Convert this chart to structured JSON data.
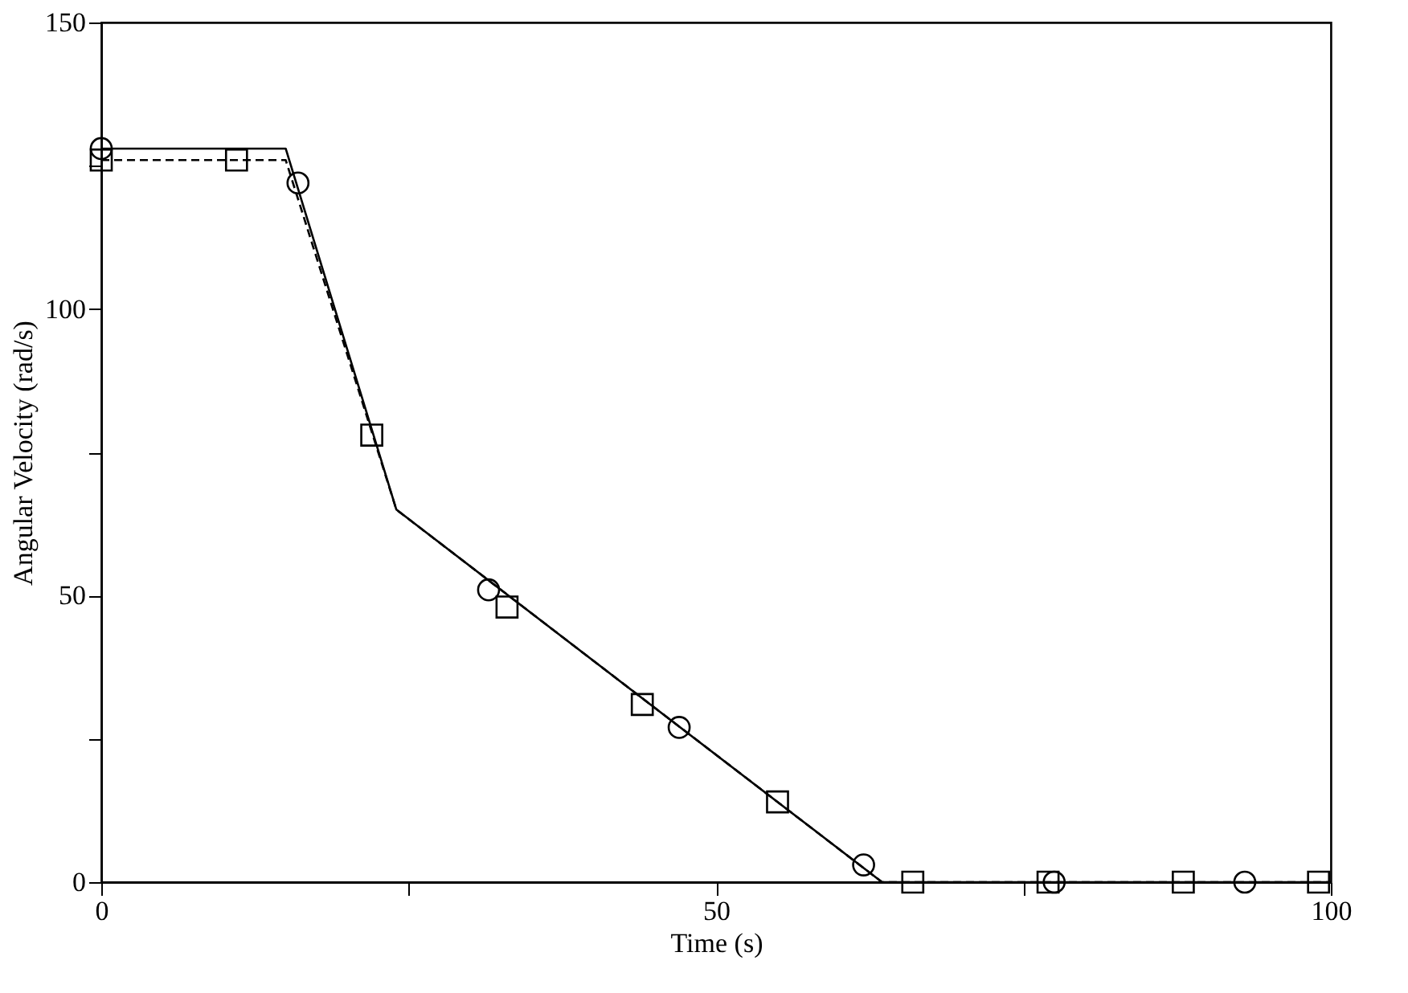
{
  "chart_data": {
    "type": "line",
    "xlabel": "Time (s)",
    "ylabel": "Angular Velocity (rad/s)",
    "xlim": [
      0,
      100
    ],
    "ylim": [
      0,
      150
    ],
    "xticks": [
      0,
      {
        "value": 25,
        "label": null
      },
      50,
      {
        "value": 75,
        "label": null
      },
      100
    ],
    "yticks": [
      0,
      {
        "value": 25,
        "label": null
      },
      50,
      {
        "value": 75,
        "label": null
      },
      100,
      {
        "value": 125,
        "label": null
      },
      150
    ],
    "grid": false,
    "series": [
      {
        "color": "#000000",
        "line_style": "solid",
        "marker": "none",
        "x": [
          0,
          15,
          24,
          63.5,
          100
        ],
        "values": [
          128,
          128,
          65,
          0,
          0
        ]
      },
      {
        "color": "#000000",
        "line_style": "dashed",
        "marker": "none",
        "x": [
          0,
          15,
          24,
          63.5,
          100
        ],
        "values": [
          126,
          126,
          65,
          0,
          0
        ]
      },
      {
        "type": "scatter",
        "color": "#000000",
        "marker": "circle",
        "x": [
          0,
          16,
          31.5,
          47,
          62,
          77.5,
          93
        ],
        "values": [
          128,
          122,
          51,
          27,
          3,
          0,
          0
        ]
      },
      {
        "type": "scatter",
        "color": "#000000",
        "marker": "square",
        "x": [
          0,
          11,
          22,
          33,
          44,
          55,
          66,
          77,
          88,
          99
        ],
        "values": [
          126,
          126,
          78,
          48,
          31,
          14,
          0,
          0,
          0,
          0
        ]
      }
    ]
  }
}
